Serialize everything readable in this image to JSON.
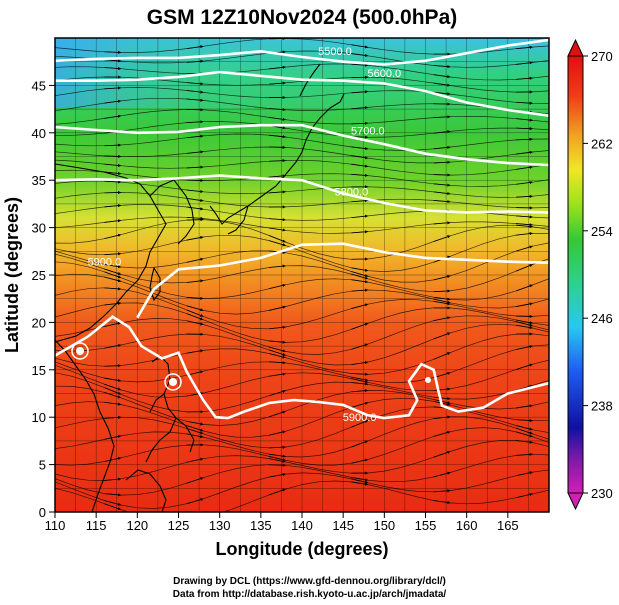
{
  "title": "GSM 12Z10Nov2024 (500.0hPa)",
  "x_axis": {
    "label": "Longitude (degrees)",
    "ticks": [
      "110",
      "115",
      "120",
      "125",
      "130",
      "135",
      "140",
      "145",
      "150",
      "155",
      "160",
      "165"
    ],
    "range": [
      110,
      170
    ]
  },
  "y_axis": {
    "label": "Latitude  (degrees)",
    "ticks": [
      "0",
      "5",
      "10",
      "15",
      "20",
      "25",
      "30",
      "35",
      "40",
      "45"
    ],
    "range": [
      0,
      50
    ]
  },
  "colorbar": {
    "ticks": [
      "230",
      "238",
      "246",
      "254",
      "262",
      "270"
    ],
    "range": [
      230,
      270
    ],
    "colors": [
      "#d21fb4",
      "#1010a0",
      "#1e5ef0",
      "#29c8f0",
      "#2fd08c",
      "#35c836",
      "#9be21e",
      "#f0e628",
      "#f0a024",
      "#f03c18",
      "#e01010"
    ]
  },
  "contour_labels": [
    "5500.0",
    "5600.0",
    "5700.0",
    "5800.0",
    "5900.0",
    "5900.0"
  ],
  "contours": [
    {
      "label": "5500.0",
      "points": [
        [
          110,
          47.6
        ],
        [
          115,
          47.8
        ],
        [
          120,
          47.9
        ],
        [
          125,
          47.9
        ],
        [
          130,
          48.2
        ],
        [
          135,
          48.6
        ],
        [
          140,
          48.0
        ],
        [
          145,
          47.5
        ],
        [
          150,
          47.2
        ],
        [
          155,
          47.6
        ],
        [
          160,
          48.4
        ],
        [
          165,
          49.2
        ],
        [
          170,
          49.8
        ]
      ]
    },
    {
      "label": "5600.0",
      "points": [
        [
          110,
          45.5
        ],
        [
          115,
          45.5
        ],
        [
          120,
          45.6
        ],
        [
          125,
          45.9
        ],
        [
          130,
          46.4
        ],
        [
          135,
          46.0
        ],
        [
          140,
          45.6
        ],
        [
          145,
          45.5
        ],
        [
          150,
          45.2
        ],
        [
          155,
          44.4
        ],
        [
          160,
          43.2
        ],
        [
          165,
          42.4
        ],
        [
          170,
          41.8
        ]
      ]
    },
    {
      "label": "5700.0",
      "points": [
        [
          110,
          40.6
        ],
        [
          115,
          40.3
        ],
        [
          120,
          40.0
        ],
        [
          125,
          40.1
        ],
        [
          130,
          40.6
        ],
        [
          135,
          40.8
        ],
        [
          140,
          40.8
        ],
        [
          145,
          39.7
        ],
        [
          150,
          38.8
        ],
        [
          155,
          37.8
        ],
        [
          160,
          37.2
        ],
        [
          165,
          36.8
        ],
        [
          170,
          36.6
        ]
      ]
    },
    {
      "label": "5800.0",
      "points": [
        [
          110,
          35.0
        ],
        [
          115,
          35.1
        ],
        [
          120,
          35.0
        ],
        [
          125,
          35.2
        ],
        [
          130,
          35.5
        ],
        [
          135,
          35.2
        ],
        [
          140,
          35.0
        ],
        [
          145,
          33.6
        ],
        [
          150,
          32.6
        ],
        [
          155,
          31.8
        ],
        [
          160,
          31.6
        ],
        [
          165,
          31.7
        ],
        [
          170,
          31.6
        ]
      ]
    },
    {
      "label": "5900.0",
      "points": [
        [
          120,
          20.5
        ],
        [
          122,
          23.5
        ],
        [
          125,
          25.6
        ],
        [
          130,
          26.0
        ],
        [
          135,
          26.8
        ],
        [
          140,
          28.2
        ],
        [
          145,
          28.3
        ],
        [
          150,
          27.4
        ],
        [
          155,
          26.8
        ],
        [
          160,
          26.6
        ],
        [
          165,
          26.4
        ],
        [
          170,
          26.3
        ]
      ]
    },
    {
      "label": "5900.0",
      "points": [
        [
          110,
          16.5
        ],
        [
          114,
          18.5
        ],
        [
          117,
          20.6
        ],
        [
          119,
          19.5
        ],
        [
          120.5,
          17.5
        ],
        [
          123,
          16.2
        ],
        [
          125,
          16.8
        ],
        [
          126,
          14.8
        ],
        [
          128,
          11.8
        ],
        [
          129.5,
          10.0
        ],
        [
          131,
          9.9
        ],
        [
          133,
          10.6
        ],
        [
          136,
          11.5
        ],
        [
          139,
          11.8
        ],
        [
          142,
          11.6
        ],
        [
          145,
          11.3
        ],
        [
          148,
          10.2
        ],
        [
          150,
          9.9
        ],
        [
          153,
          10.2
        ],
        [
          154,
          11.8
        ],
        [
          153,
          13.8
        ],
        [
          154.5,
          15.6
        ],
        [
          156,
          15.0
        ],
        [
          156.5,
          13.0
        ],
        [
          157,
          11.2
        ],
        [
          159,
          10.6
        ],
        [
          162,
          11.0
        ],
        [
          165,
          12.5
        ],
        [
          170,
          13.6
        ]
      ]
    }
  ],
  "credits": {
    "line1": "Drawing by DCL (https://www.gfd-dennou.org/library/dcl/)",
    "line2": "Data from http://database.rish.kyoto-u.ac.jp/arch/jmadata/"
  }
}
